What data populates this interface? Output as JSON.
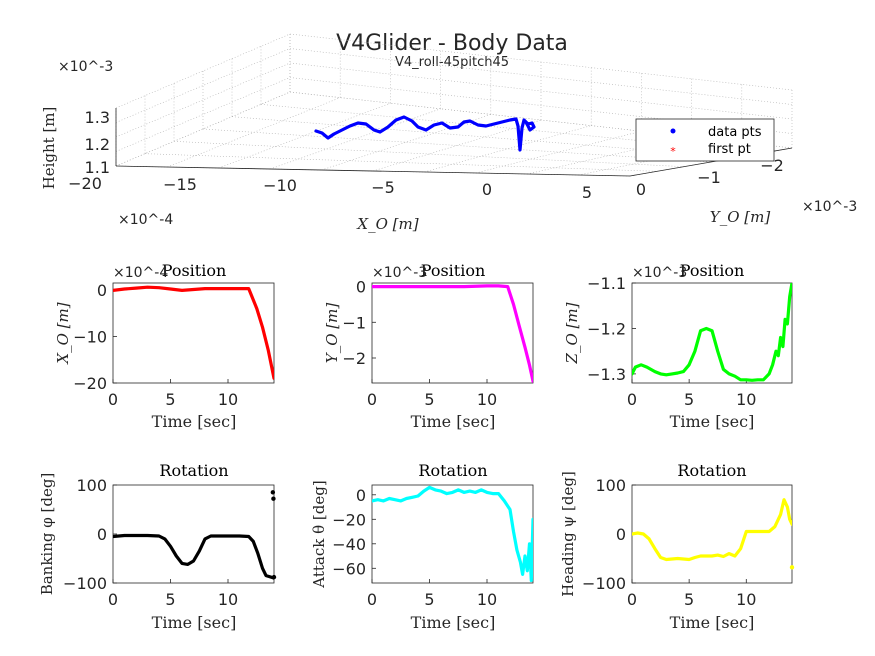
{
  "figure": {
    "title": "V4Glider - Body Data",
    "subtitle": "V4_roll-45pitch45"
  },
  "chart_data": [
    {
      "id": "3d",
      "type": "scatter",
      "projection": "3d",
      "title": "",
      "xlabel": "X_O [m]",
      "ylabel": "Y_O [m]",
      "zlabel": "Height [m]",
      "x_ticks": [
        "-20",
        "-15",
        "-10",
        "-5",
        "0",
        "5"
      ],
      "x_exponent": "×10^-4",
      "y_ticks": [
        "0",
        "-1",
        "-2"
      ],
      "y_exponent": "×10^-3",
      "z_ticks": [
        "1.1",
        "1.2",
        "1.3"
      ],
      "z_exponent": "×10^-3",
      "grid": true,
      "legend": {
        "position": "right",
        "entries": [
          {
            "label": "data pts",
            "marker": "dot",
            "color": "#0000ff"
          },
          {
            "label": "first pt",
            "marker": "star",
            "color": "#ff0000"
          }
        ]
      },
      "series": [
        {
          "name": "data pts",
          "color": "#0000ff",
          "screen_trace": [
            [
              316,
              131
            ],
            [
              322,
              133
            ],
            [
              328,
              138
            ],
            [
              334,
              134
            ],
            [
              342,
              130
            ],
            [
              350,
              126
            ],
            [
              358,
              123
            ],
            [
              366,
              124
            ],
            [
              374,
              130
            ],
            [
              380,
              132
            ],
            [
              388,
              127
            ],
            [
              396,
              120
            ],
            [
              404,
              117
            ],
            [
              412,
              121
            ],
            [
              418,
              127
            ],
            [
              426,
              130
            ],
            [
              434,
              125
            ],
            [
              442,
              123
            ],
            [
              450,
              128
            ],
            [
              458,
              127
            ],
            [
              464,
              122
            ],
            [
              470,
              121
            ],
            [
              478,
              125
            ],
            [
              486,
              126
            ],
            [
              494,
              124
            ],
            [
              502,
              122
            ],
            [
              510,
              120
            ],
            [
              516,
              119
            ],
            [
              518,
              126
            ],
            [
              520,
              150
            ],
            [
              522,
              128
            ],
            [
              524,
              120
            ],
            [
              528,
              124
            ],
            [
              532,
              123
            ],
            [
              534,
              127
            ],
            [
              530,
              130
            ],
            [
              526,
              122
            ]
          ]
        }
      ]
    },
    {
      "id": "xpos",
      "type": "line",
      "title": "Position",
      "xlabel": "Time [sec]",
      "ylabel": "X_O [m]",
      "exponent": "×10^-4",
      "xlim": [
        0,
        14
      ],
      "ylim": [
        -20,
        1.5
      ],
      "x_ticks": [
        0,
        5,
        10
      ],
      "y_ticks": [
        0,
        -10,
        -20
      ],
      "color": "#ff0000",
      "x": [
        0,
        1,
        2,
        3,
        4,
        5,
        6,
        7,
        8,
        9,
        10,
        11,
        11.8,
        12.5,
        13,
        13.5,
        14
      ],
      "y": [
        -0.1,
        0.2,
        0.4,
        0.6,
        0.5,
        0.2,
        -0.1,
        0.1,
        0.3,
        0.3,
        0.3,
        0.3,
        0.3,
        -4,
        -8,
        -13,
        -19
      ]
    },
    {
      "id": "ypos",
      "type": "line",
      "title": "Position",
      "xlabel": "Time [sec]",
      "ylabel": "Y_O [m]",
      "exponent": "×10^-3",
      "xlim": [
        0,
        14
      ],
      "ylim": [
        -2.7,
        0.1
      ],
      "x_ticks": [
        0,
        5,
        10
      ],
      "y_ticks": [
        0,
        -1,
        -2
      ],
      "color": "#ff00ff",
      "x": [
        0,
        2,
        4,
        6,
        8,
        10,
        11,
        11.8,
        12.3,
        12.8,
        13.3,
        13.7,
        14
      ],
      "y": [
        0,
        0,
        0,
        0,
        0,
        0.02,
        0.02,
        0,
        -0.5,
        -1.1,
        -1.7,
        -2.2,
        -2.65
      ]
    },
    {
      "id": "zpos",
      "type": "line",
      "title": "Position",
      "xlabel": "Time [sec]",
      "ylabel": "Z_O [m]",
      "exponent": "×10^-3",
      "xlim": [
        0,
        14
      ],
      "ylim": [
        -1.32,
        -1.1
      ],
      "x_ticks": [
        0,
        5,
        10
      ],
      "y_ticks": [
        -1.1,
        -1.2,
        -1.3
      ],
      "color": "#00ff00",
      "x": [
        0,
        0.3,
        0.8,
        1.3,
        2,
        2.5,
        3,
        3.5,
        4,
        4.5,
        5,
        5.5,
        6,
        6.5,
        7,
        7.5,
        8,
        8.5,
        9,
        9.5,
        10,
        10.5,
        11,
        11.5,
        12,
        12.3,
        12.6,
        12.8,
        13,
        13.2,
        13.4,
        13.6,
        13.8,
        14
      ],
      "y": [
        -1.3,
        -1.285,
        -1.28,
        -1.285,
        -1.295,
        -1.3,
        -1.302,
        -1.3,
        -1.298,
        -1.295,
        -1.28,
        -1.25,
        -1.205,
        -1.2,
        -1.205,
        -1.25,
        -1.29,
        -1.3,
        -1.305,
        -1.313,
        -1.313,
        -1.314,
        -1.313,
        -1.313,
        -1.3,
        -1.28,
        -1.25,
        -1.26,
        -1.22,
        -1.24,
        -1.18,
        -1.19,
        -1.13,
        -1.1
      ]
    },
    {
      "id": "banking",
      "type": "line",
      "title": "Rotation",
      "xlabel": "Time [sec]",
      "ylabel": "Banking φ [deg]",
      "xlim": [
        0,
        14
      ],
      "ylim": [
        -100,
        100
      ],
      "x_ticks": [
        0,
        5,
        10
      ],
      "y_ticks": [
        100,
        0,
        -100
      ],
      "color": "#000000",
      "x": [
        0,
        1,
        2,
        3,
        4,
        4.5,
        5,
        5.5,
        6,
        6.5,
        7,
        7.5,
        8,
        8.5,
        9,
        10,
        11,
        11.8,
        12.2,
        12.6,
        13,
        13.3,
        13.6,
        14
      ],
      "y": [
        -5,
        -3,
        -3,
        -3,
        -4,
        -10,
        -25,
        -45,
        -60,
        -62,
        -55,
        -35,
        -10,
        -4,
        -4,
        -4,
        -4,
        -5,
        -15,
        -40,
        -70,
        -85,
        -87,
        -90
      ],
      "extra_points": [
        [
          13.9,
          85
        ],
        [
          13.95,
          72
        ],
        [
          14,
          -88
        ]
      ]
    },
    {
      "id": "attack",
      "type": "line",
      "title": "Rotation",
      "xlabel": "Time [sec]",
      "ylabel": "Attack θ [deg]",
      "xlim": [
        0,
        14
      ],
      "ylim": [
        -72,
        8
      ],
      "x_ticks": [
        0,
        5,
        10
      ],
      "y_ticks": [
        0,
        -20,
        -40,
        -60
      ],
      "color": "#00ffff",
      "x": [
        0,
        0.5,
        1,
        1.5,
        2,
        2.5,
        3,
        3.5,
        4,
        4.5,
        5,
        5.5,
        6,
        6.5,
        7,
        7.5,
        8,
        8.5,
        9,
        9.5,
        10,
        10.5,
        11,
        11.5,
        12,
        12.3,
        12.6,
        12.9,
        13.1,
        13.3,
        13.5,
        13.7,
        13.85,
        14
      ],
      "y": [
        -5,
        -4,
        -5,
        -3,
        -4,
        -5,
        -3,
        -2,
        -1,
        3,
        6,
        4,
        3,
        1,
        2,
        4,
        2,
        3,
        2,
        4,
        2,
        1,
        1,
        -5,
        -12,
        -30,
        -45,
        -55,
        -65,
        -50,
        -62,
        -40,
        -70,
        -20
      ]
    },
    {
      "id": "heading",
      "type": "line",
      "title": "Rotation",
      "xlabel": "Time [sec]",
      "ylabel": "Heading ψ [deg]",
      "xlim": [
        0,
        14
      ],
      "ylim": [
        -100,
        100
      ],
      "x_ticks": [
        0,
        5,
        10
      ],
      "y_ticks": [
        100,
        0,
        -100
      ],
      "color": "#ffff00",
      "x": [
        0,
        0.5,
        1,
        1.5,
        2,
        2.5,
        3,
        4,
        5,
        5.5,
        6,
        7,
        7.5,
        8,
        8.5,
        9,
        9.5,
        10,
        11,
        11.5,
        12,
        12.5,
        13,
        13.3,
        13.6,
        13.8,
        14
      ],
      "y": [
        0,
        2,
        0,
        -10,
        -30,
        -48,
        -52,
        -50,
        -52,
        -48,
        -45,
        -45,
        -43,
        -46,
        -40,
        -45,
        -30,
        5,
        5,
        5,
        5,
        15,
        40,
        70,
        55,
        30,
        20
      ],
      "extra_points": [
        [
          14,
          -68
        ]
      ]
    }
  ]
}
